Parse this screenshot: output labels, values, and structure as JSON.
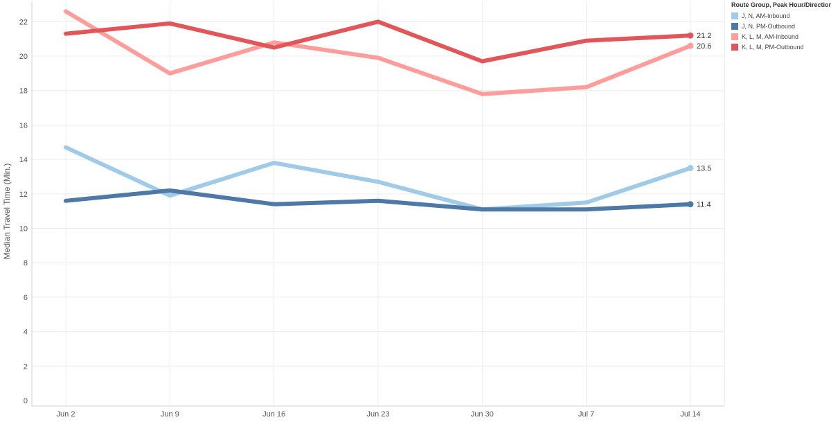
{
  "chart_data": {
    "type": "line",
    "categories": [
      "Jun 2",
      "Jun 9",
      "Jun 16",
      "Jun 23",
      "Jun 30",
      "Jul 7",
      "Jul 14"
    ],
    "ylabel": "Median Travel Time (Min.)",
    "ylim": [
      0,
      23
    ],
    "yticks": [
      "0",
      "2",
      "4",
      "6",
      "8",
      "10",
      "12",
      "14",
      "16",
      "18",
      "20",
      "22"
    ],
    "legend_title": "Route Group, Peak Hour/Direction",
    "legend_position": "top-right",
    "grid": true,
    "series": [
      {
        "name": "J, N, AM-Inbound",
        "color": "#a0cbe8",
        "values": [
          14.7,
          11.9,
          13.8,
          12.7,
          11.1,
          11.5,
          13.5
        ],
        "end_label": "13.5"
      },
      {
        "name": "J, N, PM-Outbound",
        "color": "#4e79a7",
        "values": [
          11.6,
          12.2,
          11.4,
          11.6,
          11.1,
          11.1,
          11.4
        ],
        "end_label": "11.4"
      },
      {
        "name": "K, L, M, AM-Inbound",
        "color": "#ff9d9a",
        "values": [
          22.6,
          19.0,
          20.8,
          19.9,
          17.8,
          18.2,
          20.6
        ],
        "end_label": "20.6"
      },
      {
        "name": "K, L, M, PM-Outbound",
        "color": "#e15759",
        "values": [
          21.3,
          21.9,
          20.5,
          22.0,
          19.7,
          20.9,
          21.2
        ],
        "end_label": "21.2"
      }
    ]
  }
}
